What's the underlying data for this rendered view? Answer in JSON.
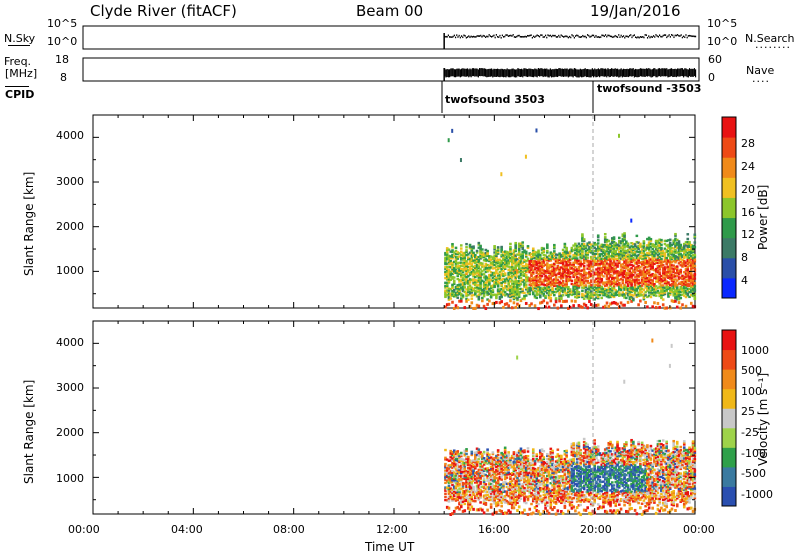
{
  "header": {
    "station": "Clyde River (fitACF)",
    "beam": "Beam 00",
    "date": "19/Jan/2016"
  },
  "top_panels": {
    "nsky_label": "N.Sky",
    "nsky_ticks": [
      "10^5",
      "10^0"
    ],
    "nsky_right_ticks": [
      "10^5",
      "10^0"
    ],
    "nsearch_label": "N.Search",
    "nsearch_dots": "........",
    "freq_label_1": "Freq.",
    "freq_label_2": "[MHz]",
    "freq_ticks": [
      "18",
      "8"
    ],
    "nave_ticks": [
      "60",
      "0"
    ],
    "nave_label": "Nave",
    "nave_dots": "....",
    "cpid_label": "CPID",
    "cpid_1": "twofsound 3503",
    "cpid_2": "twofsound -3503"
  },
  "x_axis": {
    "ticks": [
      "00:00",
      "04:00",
      "08:00",
      "12:00",
      "16:00",
      "20:00",
      "00:00"
    ],
    "label": "Time UT"
  },
  "colors": {
    "power_scale": [
      "#0a28ff",
      "#2a4fa8",
      "#3c7a66",
      "#2f9a4a",
      "#8cc62b",
      "#f0c021",
      "#f08a1a",
      "#ee4a16",
      "#e81212"
    ],
    "velocity_scale": [
      "#e81212",
      "#ee4a16",
      "#f08a1a",
      "#f0b818",
      "#c8c8c8",
      "#9ed34a",
      "#2fa04a",
      "#3a7aa0",
      "#2a4fb0"
    ]
  },
  "chart_data": [
    {
      "type": "heatmap",
      "title": "",
      "xlabel": "Time UT",
      "ylabel": "Slant Range [km]",
      "xlim": [
        0,
        24
      ],
      "ylim": [
        180,
        4500
      ],
      "yticks": [
        "4000",
        "3000",
        "2000",
        "1000"
      ],
      "yticks_values": [
        4000,
        3000,
        2000,
        1000
      ],
      "colorbar_label": "Power [dB]",
      "colorbar_ticks": [
        "28",
        "24",
        "20",
        "16",
        "12",
        "8",
        "4"
      ],
      "colorbar_range": [
        0,
        32
      ],
      "data_start_hour": 14.0,
      "dominant_range_km": [
        600,
        1600
      ],
      "dominant_time_ut": [
        15.0,
        24.0
      ]
    },
    {
      "type": "heatmap",
      "title": "",
      "xlabel": "Time UT",
      "ylabel": "Slant Range [km]",
      "xlim": [
        0,
        24
      ],
      "ylim": [
        180,
        4500
      ],
      "yticks": [
        "4000",
        "3000",
        "2000",
        "1000"
      ],
      "yticks_values": [
        4000,
        3000,
        2000,
        1000
      ],
      "colorbar_label": "Velocity [m s⁻¹]",
      "colorbar_ticks": [
        "1000",
        "500",
        "100",
        "25",
        "-25",
        "-100",
        "-500",
        "-1000"
      ],
      "data_start_hour": 14.0,
      "dominant_range_km": [
        600,
        1600
      ],
      "dominant_time_ut": [
        15.0,
        24.0
      ]
    }
  ]
}
